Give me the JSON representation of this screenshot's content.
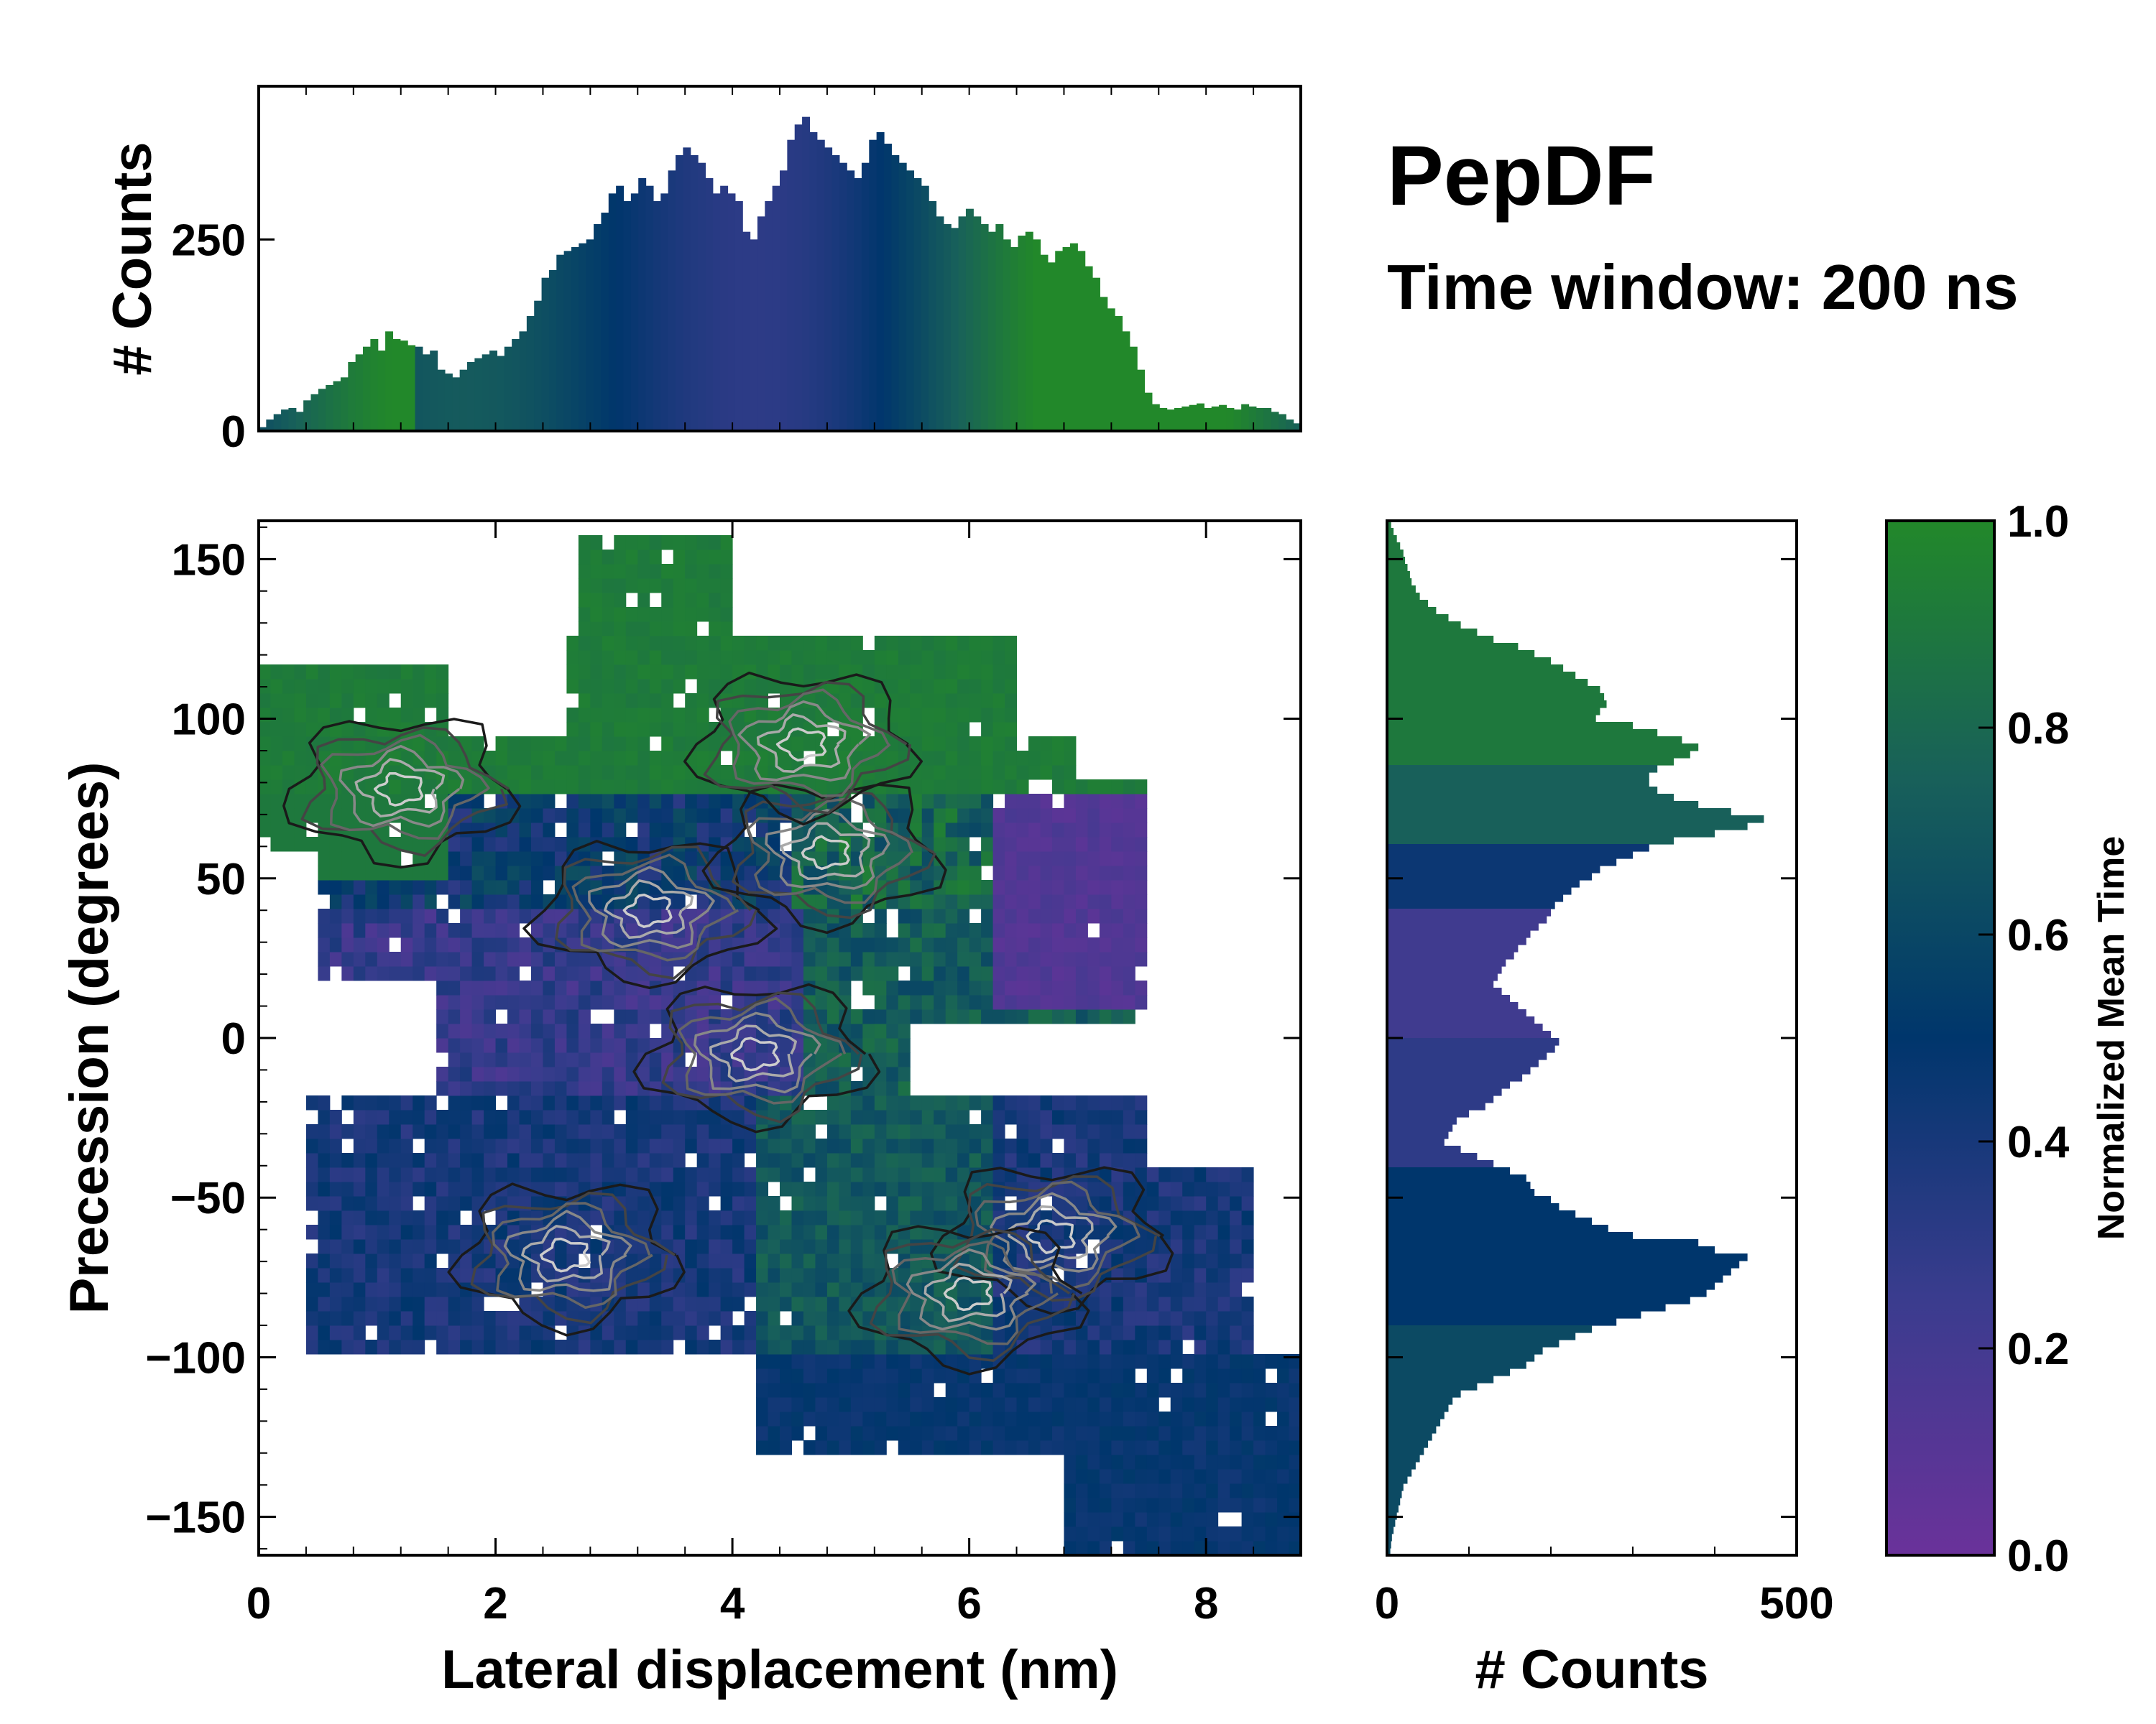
{
  "title": "PepDF",
  "subtitle": "Time window: 200 ns",
  "colors": {
    "low": "#6a329a",
    "mid": "#00366c",
    "high": "#22882a"
  },
  "chart_data": [
    {
      "type": "heatmap",
      "name": "main",
      "xlabel": "Lateral displacement (nm)",
      "ylabel": "Precession (degrees)",
      "xlim": [
        0,
        8.8
      ],
      "ylim": [
        -162,
        162
      ],
      "xticks": [
        0,
        2,
        4,
        6,
        8
      ],
      "yticks": [
        150,
        100,
        50,
        0,
        -50,
        -100,
        -150
      ],
      "xtick_labels": [
        "0",
        "2",
        "4",
        "6",
        "8"
      ],
      "ytick_labels": [
        "150",
        "100",
        "50",
        "0",
        "−50",
        "−100",
        "−150"
      ],
      "cluster_centers": [
        {
          "x": 3.3,
          "y": 40
        },
        {
          "x": 4.8,
          "y": 58
        },
        {
          "x": 6.7,
          "y": -62
        },
        {
          "x": 6.0,
          "y": -80
        },
        {
          "x": 2.6,
          "y": -68
        },
        {
          "x": 4.2,
          "y": -5
        },
        {
          "x": 1.2,
          "y": 78
        },
        {
          "x": 4.6,
          "y": 92
        }
      ]
    },
    {
      "type": "bar",
      "name": "top_histogram",
      "ylabel": "# Counts",
      "yticks": [
        0,
        250
      ],
      "ytick_labels": [
        "0",
        "250"
      ],
      "ylim": [
        0,
        450
      ],
      "x_range": [
        0,
        8.8
      ],
      "values": [
        5,
        15,
        22,
        28,
        30,
        25,
        40,
        48,
        55,
        60,
        65,
        70,
        90,
        100,
        110,
        120,
        105,
        130,
        120,
        118,
        112,
        110,
        100,
        105,
        80,
        75,
        70,
        80,
        90,
        95,
        100,
        105,
        98,
        110,
        120,
        130,
        150,
        170,
        200,
        210,
        230,
        235,
        240,
        245,
        250,
        270,
        285,
        310,
        320,
        300,
        310,
        330,
        320,
        300,
        310,
        340,
        360,
        370,
        360,
        350,
        330,
        310,
        320,
        310,
        300,
        260,
        250,
        280,
        300,
        320,
        340,
        380,
        400,
        410,
        390,
        380,
        370,
        360,
        350,
        340,
        330,
        350,
        380,
        390,
        375,
        360,
        350,
        340,
        330,
        320,
        300,
        280,
        270,
        265,
        280,
        290,
        280,
        270,
        260,
        270,
        250,
        240,
        255,
        260,
        250,
        230,
        220,
        235,
        240,
        245,
        235,
        215,
        200,
        175,
        160,
        150,
        130,
        110,
        80,
        50,
        35,
        30,
        28,
        30,
        32,
        34,
        36,
        30,
        32,
        34,
        30,
        28,
        35,
        32,
        30,
        30,
        25,
        22,
        15,
        10
      ]
    },
    {
      "type": "bar",
      "orientation": "horizontal",
      "name": "right_histogram",
      "xlabel": "# Counts",
      "xticks": [
        0,
        500
      ],
      "xtick_labels": [
        "0",
        "500"
      ],
      "xlim": [
        0,
        500
      ],
      "y_range": [
        -162,
        162
      ],
      "values": [
        5,
        8,
        12,
        16,
        20,
        22,
        25,
        28,
        30,
        35,
        40,
        50,
        60,
        75,
        90,
        110,
        130,
        160,
        180,
        200,
        215,
        230,
        245,
        260,
        265,
        268,
        260,
        255,
        300,
        330,
        360,
        380,
        370,
        350,
        330,
        320,
        320,
        330,
        350,
        380,
        420,
        460,
        440,
        400,
        350,
        320,
        300,
        280,
        260,
        250,
        235,
        225,
        215,
        205,
        200,
        195,
        185,
        175,
        170,
        160,
        155,
        145,
        140,
        135,
        130,
        140,
        150,
        160,
        170,
        180,
        190,
        200,
        210,
        205,
        195,
        185,
        175,
        165,
        150,
        140,
        130,
        120,
        100,
        85,
        80,
        75,
        70,
        90,
        110,
        130,
        150,
        170,
        175,
        180,
        200,
        210,
        230,
        250,
        270,
        300,
        380,
        400,
        440,
        430,
        420,
        410,
        400,
        390,
        370,
        340,
        310,
        280,
        250,
        230,
        210,
        190,
        180,
        170,
        150,
        130,
        110,
        90,
        80,
        75,
        70,
        65,
        60,
        55,
        50,
        45,
        40,
        35,
        30,
        25,
        20,
        18,
        16,
        14,
        12,
        10,
        8,
        6,
        5,
        4
      ]
    },
    {
      "type": "colorbar",
      "name": "colorbar",
      "label": "Normalized Mean Time",
      "ticks": [
        0.0,
        0.2,
        0.4,
        0.6,
        0.8,
        1.0
      ],
      "tick_labels": [
        "0.0",
        "0.2",
        "0.4",
        "0.6",
        "0.8",
        "1.0"
      ],
      "range": [
        0,
        1
      ]
    }
  ]
}
